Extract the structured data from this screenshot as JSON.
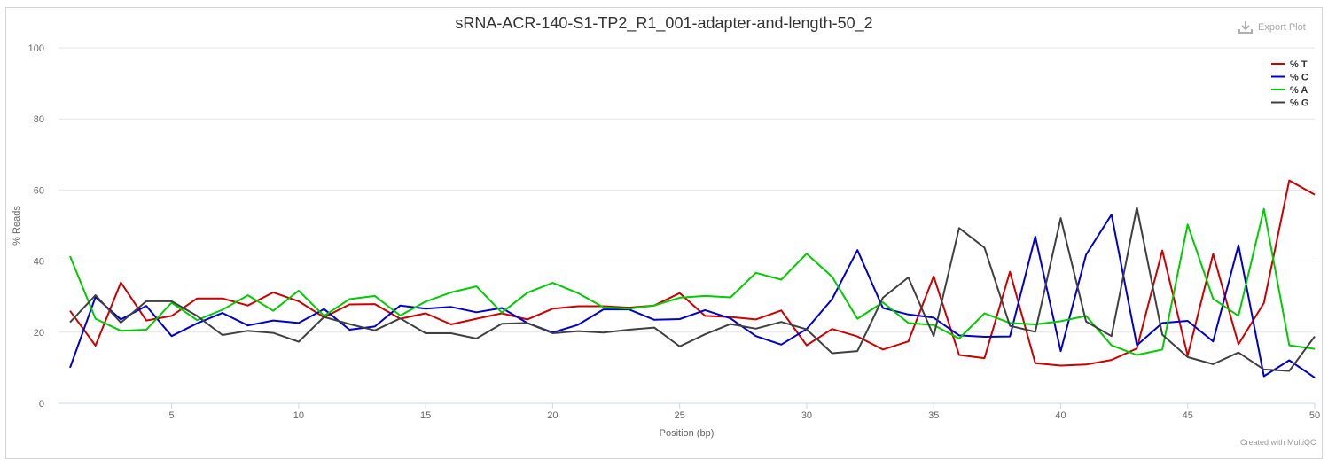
{
  "export_label": "Export Plot",
  "credit": "Created with MultiQC",
  "chart_data": {
    "type": "line",
    "title": "sRNA-ACR-140-S1-TP2_R1_001-adapter-and-length-50_2",
    "xlabel": "Position (bp)",
    "ylabel": "% Reads",
    "xlim": [
      1,
      50
    ],
    "ylim": [
      0,
      100
    ],
    "x_ticks": [
      5,
      10,
      15,
      20,
      25,
      30,
      35,
      40,
      45,
      50
    ],
    "y_ticks": [
      0,
      20,
      40,
      60,
      80,
      100
    ],
    "grid": "horizontal",
    "legend_position": "top-right",
    "x": [
      1,
      2,
      3,
      4,
      5,
      6,
      7,
      8,
      9,
      10,
      11,
      12,
      13,
      14,
      15,
      16,
      17,
      18,
      19,
      20,
      21,
      22,
      23,
      24,
      25,
      26,
      27,
      28,
      29,
      30,
      31,
      32,
      33,
      34,
      35,
      36,
      37,
      38,
      39,
      40,
      41,
      42,
      43,
      44,
      45,
      46,
      47,
      48,
      49,
      50
    ],
    "series": [
      {
        "name": "% T",
        "color": "#cc0000",
        "values": [
          26,
          16.2,
          34,
          23.3,
          24.6,
          29.5,
          29.5,
          27.5,
          31.2,
          28.7,
          24.2,
          27.8,
          27.9,
          23.8,
          25.3,
          22.2,
          23.8,
          25.3,
          23.6,
          26.6,
          27.3,
          27.3,
          26.9,
          27.5,
          31,
          24.6,
          24.3,
          23.6,
          26.1,
          16.3,
          20.9,
          18.8,
          15.1,
          17.4,
          35.7,
          13.6,
          12.7,
          37,
          11.3,
          10.6,
          10.9,
          12.2,
          15.4,
          43,
          13.4,
          42,
          16.6,
          28.2,
          62.7,
          58.7
        ]
      },
      {
        "name": "% C",
        "color": "#0000cc",
        "values": [
          10,
          29.9,
          23.6,
          27.4,
          18.9,
          22.5,
          25.4,
          21.9,
          23.3,
          22.6,
          26.5,
          20.7,
          21.6,
          27.5,
          26.6,
          27.1,
          25.6,
          26.8,
          22.6,
          19.9,
          22.1,
          26.4,
          26.4,
          23.5,
          23.7,
          26.2,
          23.9,
          18.9,
          16.5,
          20.9,
          29.3,
          43.1,
          26.8,
          25,
          24.1,
          19.1,
          18.7,
          18.8,
          46.9,
          14.7,
          41.8,
          53.1,
          16.3,
          22.6,
          23.2,
          17.4,
          44.5,
          7.6,
          12.1,
          7.2
        ]
      },
      {
        "name": "% A",
        "color": "#00cc00",
        "values": [
          41.4,
          23.8,
          20.4,
          20.7,
          28.3,
          23.4,
          26.3,
          30.4,
          26,
          31.7,
          24.6,
          29.3,
          30.2,
          24.7,
          28.6,
          31.2,
          32.9,
          25.5,
          31.1,
          33.9,
          31,
          27,
          26.6,
          27.5,
          29.7,
          30.2,
          29.8,
          36.7,
          34.8,
          42.1,
          35.6,
          23.8,
          28.4,
          22.6,
          22,
          18.2,
          25.3,
          22.6,
          22.2,
          23.1,
          24.6,
          16.3,
          13.6,
          15.1,
          50.3,
          29.4,
          24.6,
          54.7,
          16.3,
          15.3
        ]
      },
      {
        "name": "% G",
        "color": "#404040",
        "values": [
          22.8,
          30.4,
          22.7,
          28.7,
          28.7,
          24.6,
          19.2,
          20.4,
          19.8,
          17.3,
          24.3,
          22.3,
          20.5,
          23.9,
          19.7,
          19.7,
          18.2,
          22.4,
          22.6,
          19.7,
          20.3,
          19.9,
          20.7,
          21.3,
          16,
          19.4,
          22.3,
          21,
          22.9,
          20.8,
          14.1,
          14.7,
          29.7,
          35.4,
          18.9,
          49.3,
          43.8,
          21.8,
          20.1,
          52.1,
          23,
          18.9,
          55.1,
          19.3,
          13,
          11,
          14.3,
          9.5,
          9.1,
          18.8
        ]
      }
    ]
  }
}
